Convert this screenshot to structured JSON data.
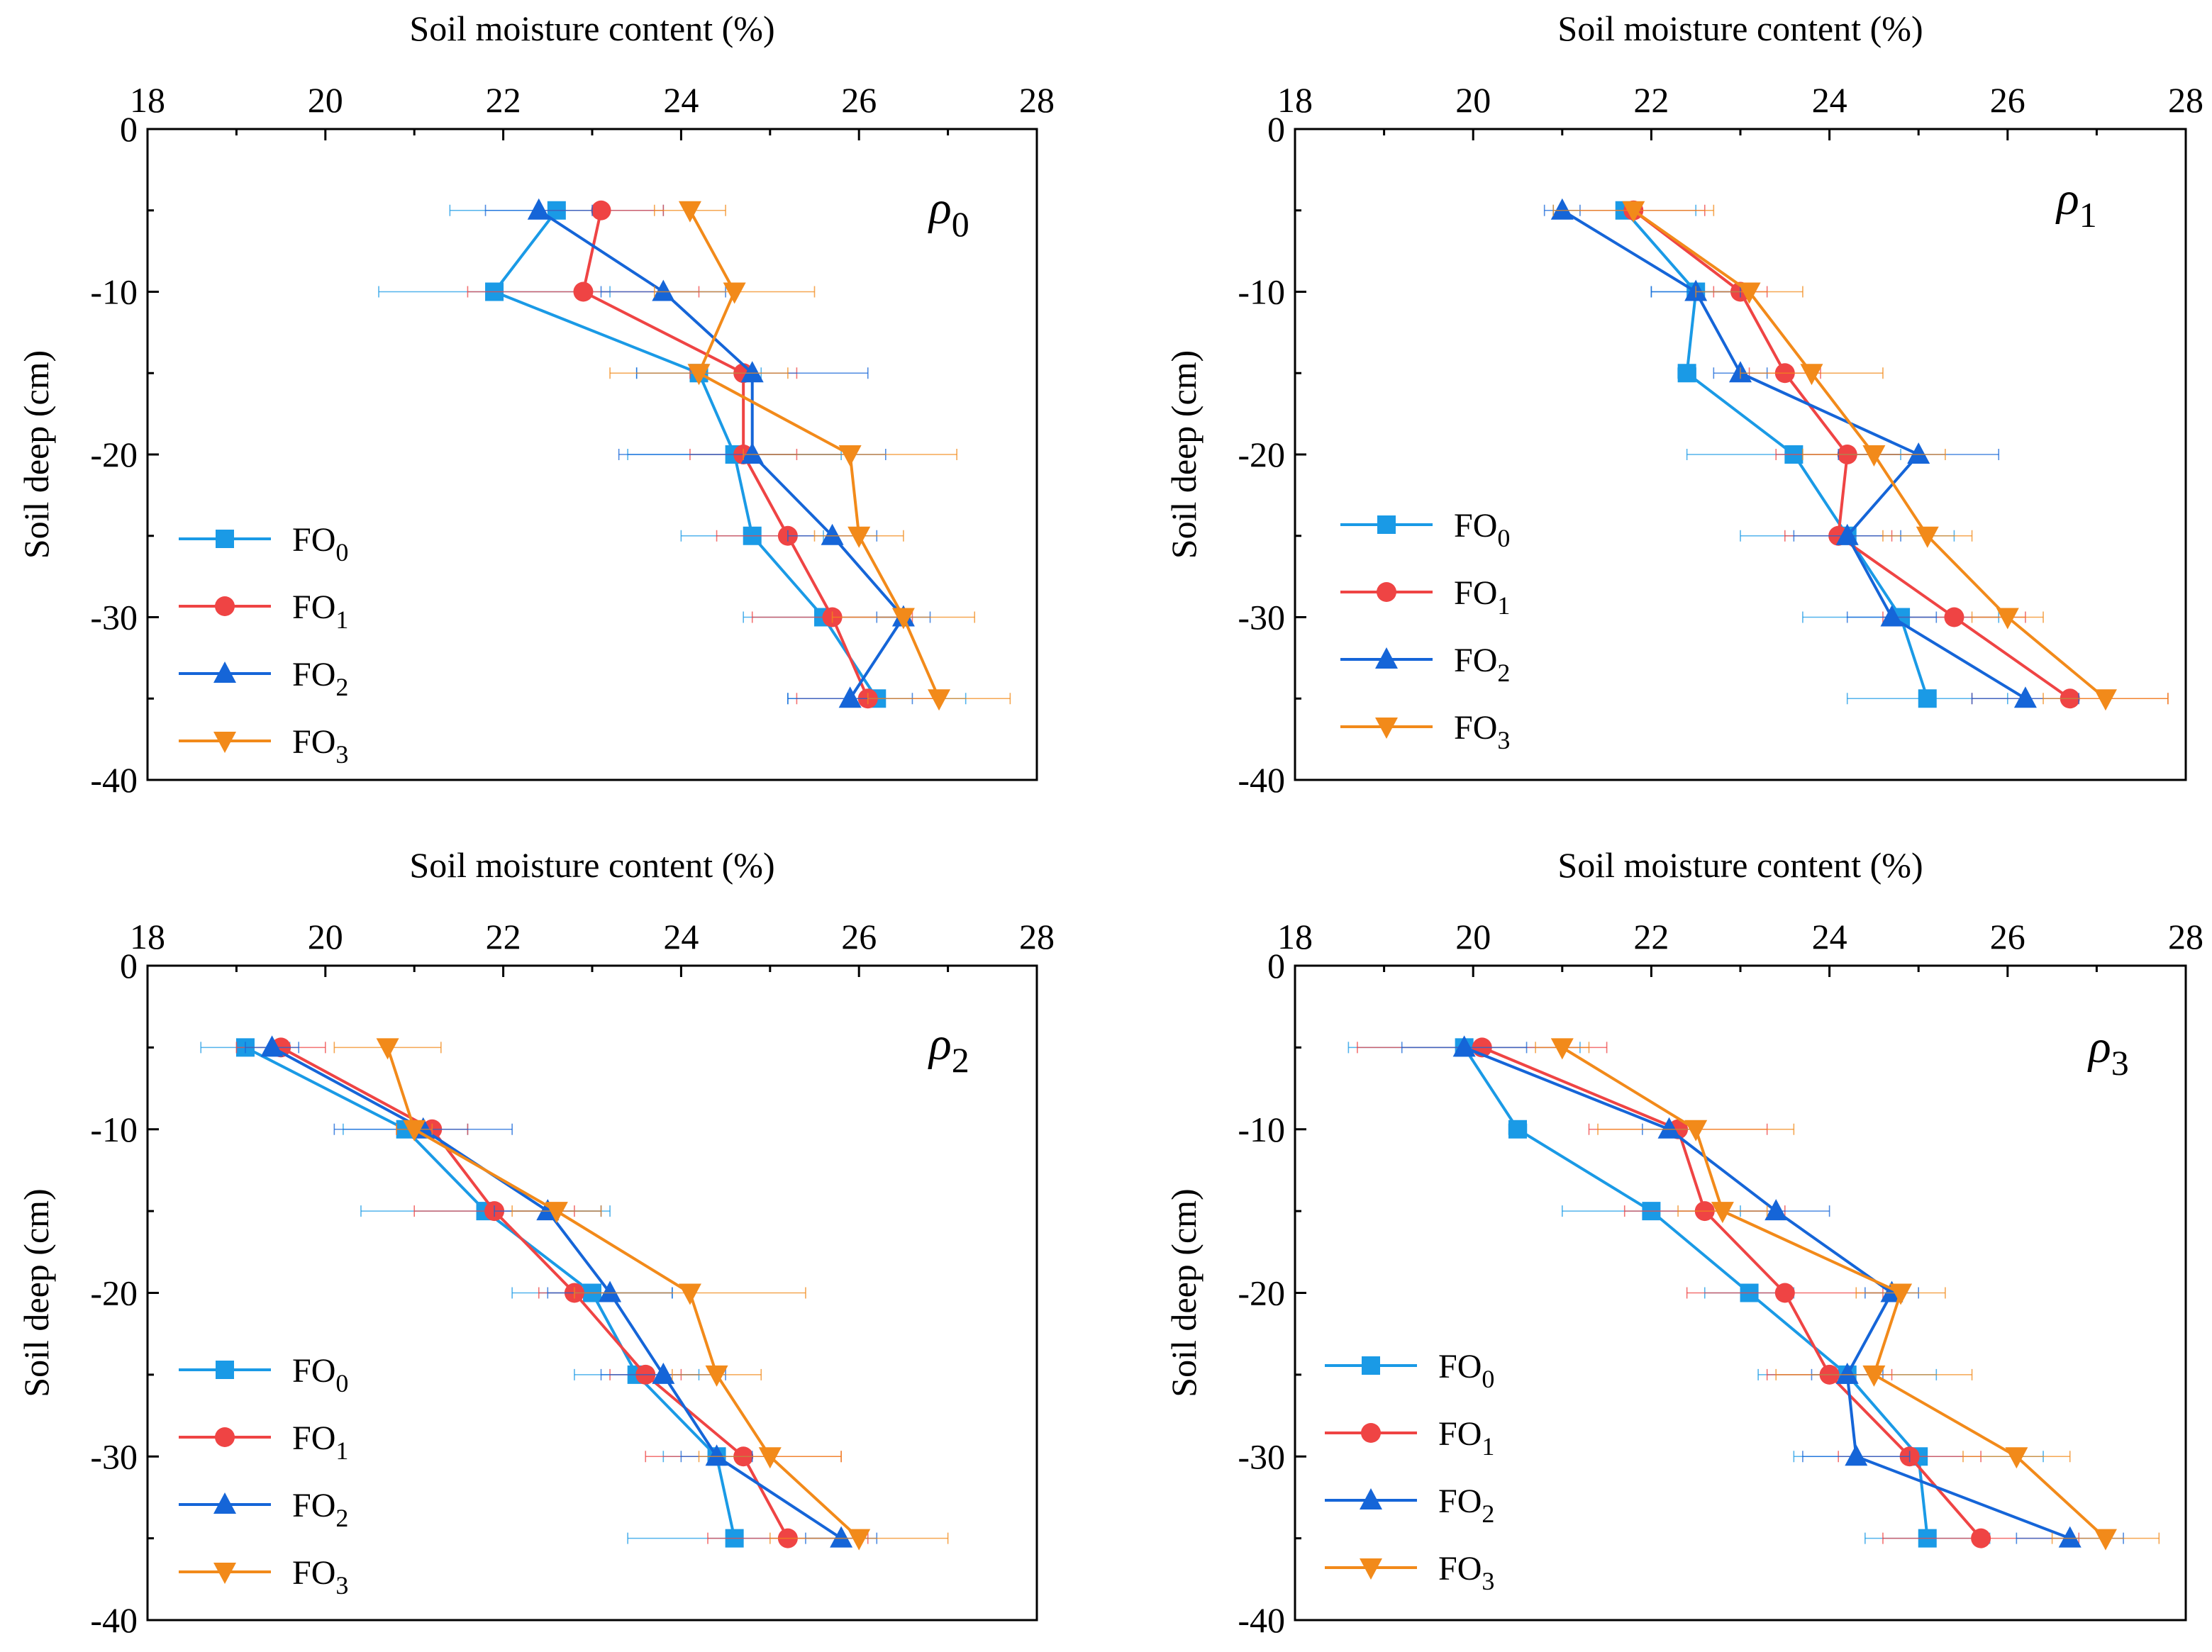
{
  "colors": {
    "FO0": "#1a9ae6",
    "FO1": "#ef4444",
    "FO2": "#1565d8",
    "FO3": "#f28a1a"
  },
  "chart_data": [
    {
      "type": "line",
      "panel": "rho0",
      "title_symbol": "ρ",
      "title_sub": "0",
      "xlabel": "Soil moisture content (%)",
      "ylabel": "Soil deep (cm)",
      "xlim": [
        18,
        28
      ],
      "ylim": [
        -40,
        0
      ],
      "x_ticks": [
        "18",
        "20",
        "22",
        "24",
        "26",
        "28"
      ],
      "y_ticks": [
        "0",
        "-10",
        "-20",
        "-30",
        "-40"
      ],
      "legend_position": "lower-left",
      "depth": [
        -5,
        -10,
        -15,
        -20,
        -25,
        -30,
        -35
      ],
      "series": [
        {
          "name": "FO",
          "sub": "0",
          "key": "FO0",
          "marker": "square",
          "values": [
            22.6,
            21.9,
            24.2,
            24.6,
            24.8,
            25.6,
            26.2
          ],
          "err": [
            1.2,
            1.3,
            0.7,
            1.2,
            0.8,
            0.9,
            1.0
          ]
        },
        {
          "name": "FO",
          "sub": "1",
          "key": "FO1",
          "marker": "circle",
          "values": [
            23.1,
            22.9,
            24.7,
            24.7,
            25.2,
            25.7,
            26.1
          ],
          "err": [
            0.7,
            1.3,
            0.6,
            0.6,
            0.8,
            0.9,
            0.8
          ]
        },
        {
          "name": "FO",
          "sub": "2",
          "key": "FO2",
          "marker": "triangle-up",
          "values": [
            22.4,
            23.8,
            24.8,
            24.8,
            25.7,
            26.5,
            25.9
          ],
          "err": [
            0.6,
            0.7,
            1.3,
            1.5,
            0.5,
            0.3,
            0.7
          ]
        },
        {
          "name": "FO",
          "sub": "3",
          "key": "FO3",
          "marker": "triangle-down",
          "values": [
            24.1,
            24.6,
            24.2,
            25.9,
            26.0,
            26.5,
            26.9
          ],
          "err": [
            0.4,
            0.9,
            1.0,
            1.2,
            0.5,
            0.8,
            0.8
          ]
        }
      ]
    },
    {
      "type": "line",
      "panel": "rho1",
      "title_symbol": "ρ",
      "title_sub": "1",
      "xlabel": "Soil moisture content (%)",
      "ylabel": "Soil deep (cm)",
      "xlim": [
        18,
        28
      ],
      "ylim": [
        -40,
        0
      ],
      "x_ticks": [
        "18",
        "20",
        "22",
        "24",
        "26",
        "28"
      ],
      "y_ticks": [
        "0",
        "-10",
        "-20",
        "-30",
        "-40"
      ],
      "legend_position": "lower-left",
      "depth": [
        -5,
        -10,
        -15,
        -20,
        -25,
        -30,
        -35
      ],
      "series": [
        {
          "name": "FO",
          "sub": "0",
          "key": "FO0",
          "marker": "square",
          "values": [
            21.7,
            22.5,
            22.4,
            23.6,
            24.2,
            24.8,
            25.1
          ],
          "err": [
            0.8,
            0.5,
            0.1,
            1.2,
            1.2,
            1.1,
            0.9
          ]
        },
        {
          "name": "FO",
          "sub": "1",
          "key": "FO1",
          "marker": "circle",
          "values": [
            21.8,
            23.0,
            23.5,
            24.2,
            24.1,
            25.4,
            26.7
          ],
          "err": [
            0.8,
            0.3,
            0.4,
            0.8,
            0.6,
            0.8,
            1.1
          ]
        },
        {
          "name": "FO",
          "sub": "2",
          "key": "FO2",
          "marker": "triangle-up",
          "values": [
            21.0,
            22.5,
            23.0,
            25.0,
            24.2,
            24.7,
            26.2
          ],
          "err": [
            0.2,
            0.5,
            0.3,
            0.9,
            0.6,
            0.5,
            0.6
          ]
        },
        {
          "name": "FO",
          "sub": "3",
          "key": "FO3",
          "marker": "triangle-down",
          "values": [
            21.8,
            23.1,
            23.8,
            24.5,
            25.1,
            26.0,
            27.1
          ],
          "err": [
            0.9,
            0.6,
            0.8,
            0.8,
            0.5,
            0.4,
            0.7
          ]
        }
      ]
    },
    {
      "type": "line",
      "panel": "rho2",
      "title_symbol": "ρ",
      "title_sub": "2",
      "xlabel": "Soil moisture content (%)",
      "ylabel": "Soil deep (cm)",
      "xlim": [
        18,
        28
      ],
      "ylim": [
        -40,
        0
      ],
      "x_ticks": [
        "18",
        "20",
        "22",
        "24",
        "26",
        "28"
      ],
      "y_ticks": [
        "0",
        "-10",
        "-20",
        "-30",
        "-40"
      ],
      "legend_position": "lower-left",
      "depth": [
        -5,
        -10,
        -15,
        -20,
        -25,
        -30,
        -35
      ],
      "series": [
        {
          "name": "FO",
          "sub": "0",
          "key": "FO0",
          "marker": "square",
          "values": [
            19.1,
            20.9,
            21.8,
            23.0,
            23.5,
            24.4,
            24.6
          ],
          "err": [
            0.5,
            0.7,
            1.4,
            0.9,
            0.7,
            0.6,
            1.2
          ]
        },
        {
          "name": "FO",
          "sub": "1",
          "key": "FO1",
          "marker": "circle",
          "values": [
            19.5,
            21.2,
            21.9,
            22.8,
            23.6,
            24.7,
            25.2
          ],
          "err": [
            0.5,
            0.4,
            0.9,
            0.4,
            0.4,
            1.1,
            0.9
          ]
        },
        {
          "name": "FO",
          "sub": "2",
          "key": "FO2",
          "marker": "triangle-up",
          "values": [
            19.4,
            21.1,
            22.5,
            23.2,
            23.8,
            24.4,
            25.8
          ],
          "err": [
            0.3,
            1.0,
            0.6,
            0.7,
            0.7,
            0.4,
            0.4
          ]
        },
        {
          "name": "FO",
          "sub": "3",
          "key": "FO3",
          "marker": "triangle-down",
          "values": [
            20.7,
            21.0,
            22.6,
            24.1,
            24.4,
            25.0,
            26.0
          ],
          "err": [
            0.6,
            0.2,
            0.5,
            1.3,
            0.5,
            0.8,
            1.0
          ]
        }
      ]
    },
    {
      "type": "line",
      "panel": "rho3",
      "title_symbol": "ρ",
      "title_sub": "3",
      "xlabel": "Soil moisture content (%)",
      "ylabel": "Soil deep (cm)",
      "xlim": [
        18,
        28
      ],
      "ylim": [
        -40,
        0
      ],
      "x_ticks": [
        "18",
        "20",
        "22",
        "24",
        "26",
        "28"
      ],
      "y_ticks": [
        "0",
        "-10",
        "-20",
        "-30",
        "-40"
      ],
      "legend_position": "lower-left",
      "depth": [
        -5,
        -10,
        -15,
        -20,
        -25,
        -30,
        -35
      ],
      "series": [
        {
          "name": "FO",
          "sub": "0",
          "key": "FO0",
          "marker": "square",
          "values": [
            19.9,
            20.5,
            22.0,
            23.1,
            24.2,
            25.0,
            25.1
          ],
          "err": [
            1.3,
            0.1,
            1.0,
            0.5,
            1.0,
            1.4,
            0.7
          ]
        },
        {
          "name": "FO",
          "sub": "1",
          "key": "FO1",
          "marker": "circle",
          "values": [
            20.1,
            22.3,
            22.6,
            23.5,
            24.0,
            24.9,
            25.7
          ],
          "err": [
            1.4,
            1.0,
            0.9,
            1.1,
            0.7,
            0.8,
            1.1
          ]
        },
        {
          "name": "FO",
          "sub": "2",
          "key": "FO2",
          "marker": "triangle-up",
          "values": [
            19.9,
            22.2,
            23.4,
            24.7,
            24.2,
            24.3,
            26.7
          ],
          "err": [
            0.7,
            0.3,
            0.6,
            0.3,
            0.4,
            0.6,
            0.6
          ]
        },
        {
          "name": "FO",
          "sub": "3",
          "key": "FO3",
          "marker": "triangle-down",
          "values": [
            21.0,
            22.5,
            22.8,
            24.8,
            24.5,
            26.1,
            27.1
          ],
          "err": [
            0.3,
            1.1,
            0.5,
            0.5,
            1.1,
            0.6,
            0.6
          ]
        }
      ]
    }
  ]
}
